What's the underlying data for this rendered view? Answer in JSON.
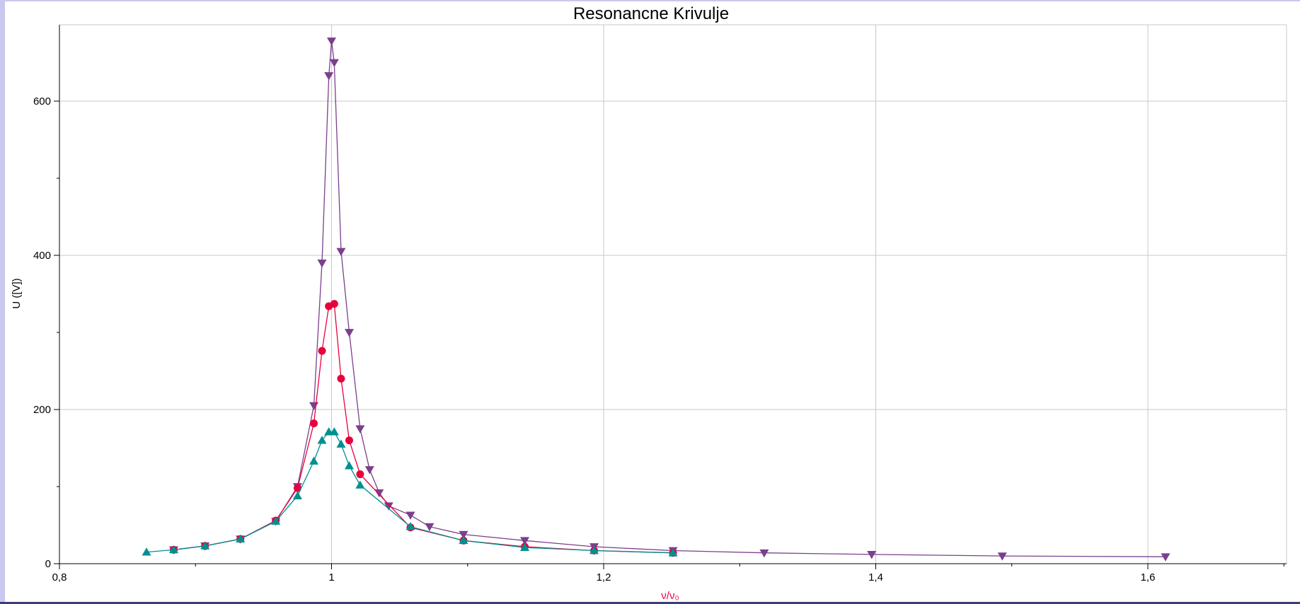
{
  "chart_data": {
    "type": "line",
    "title": "Resonancne Krivulje",
    "xlabel": "ν/ν₀",
    "ylabel": "U ([V])",
    "xlim": [
      0.8,
      1.7
    ],
    "ylim": [
      0,
      700
    ],
    "x_ticks": [
      0.8,
      1.0,
      1.2,
      1.4,
      1.6
    ],
    "x_tick_labels": [
      "0,8",
      "1",
      "1,2",
      "1,4",
      "1,6"
    ],
    "x_minor_ticks": [
      0.9,
      1.1,
      1.3,
      1.5,
      1.7
    ],
    "y_ticks": [
      0,
      200,
      400,
      600
    ],
    "y_tick_labels": [
      "0",
      "200",
      "400",
      "600"
    ],
    "y_minor_ticks": [
      100,
      300,
      500
    ],
    "grid": true,
    "colors": {
      "xlabel": "#e8003c",
      "grid": "#c8c8c8",
      "axis": "#000000"
    },
    "series": [
      {
        "marker": "triangle-down",
        "color": "#7b3f8c",
        "x": [
          0.884,
          0.907,
          0.933,
          0.959,
          0.975,
          0.987,
          0.993,
          0.998,
          1.0,
          1.002,
          1.007,
          1.013,
          1.021,
          1.028,
          1.035,
          1.042,
          1.058,
          1.072,
          1.097,
          1.142,
          1.193,
          1.251,
          1.318,
          1.397,
          1.493,
          1.613
        ],
        "y": [
          18,
          23,
          32,
          55,
          100,
          205,
          390,
          633,
          678,
          650,
          405,
          300,
          175,
          122,
          92,
          75,
          63,
          48,
          38,
          30,
          22,
          17,
          14,
          12,
          10,
          9
        ]
      },
      {
        "marker": "circle",
        "color": "#e8003c",
        "x": [
          0.884,
          0.907,
          0.933,
          0.959,
          0.975,
          0.987,
          0.993,
          0.998,
          1.002,
          1.007,
          1.013,
          1.021,
          1.058,
          1.097,
          1.142,
          1.193,
          1.251
        ],
        "y": [
          18,
          23,
          32,
          56,
          98,
          182,
          276,
          334,
          337,
          240,
          160,
          116,
          47,
          30,
          22,
          17,
          14
        ]
      },
      {
        "marker": "triangle-up",
        "color": "#009090",
        "x": [
          0.864,
          0.884,
          0.907,
          0.933,
          0.959,
          0.975,
          0.987,
          0.993,
          0.998,
          1.002,
          1.007,
          1.013,
          1.021,
          1.058,
          1.097,
          1.142,
          1.193,
          1.251
        ],
        "y": [
          15,
          18,
          23,
          32,
          55,
          88,
          133,
          160,
          171,
          171,
          155,
          127,
          102,
          48,
          30,
          21,
          17,
          14
        ]
      }
    ]
  }
}
